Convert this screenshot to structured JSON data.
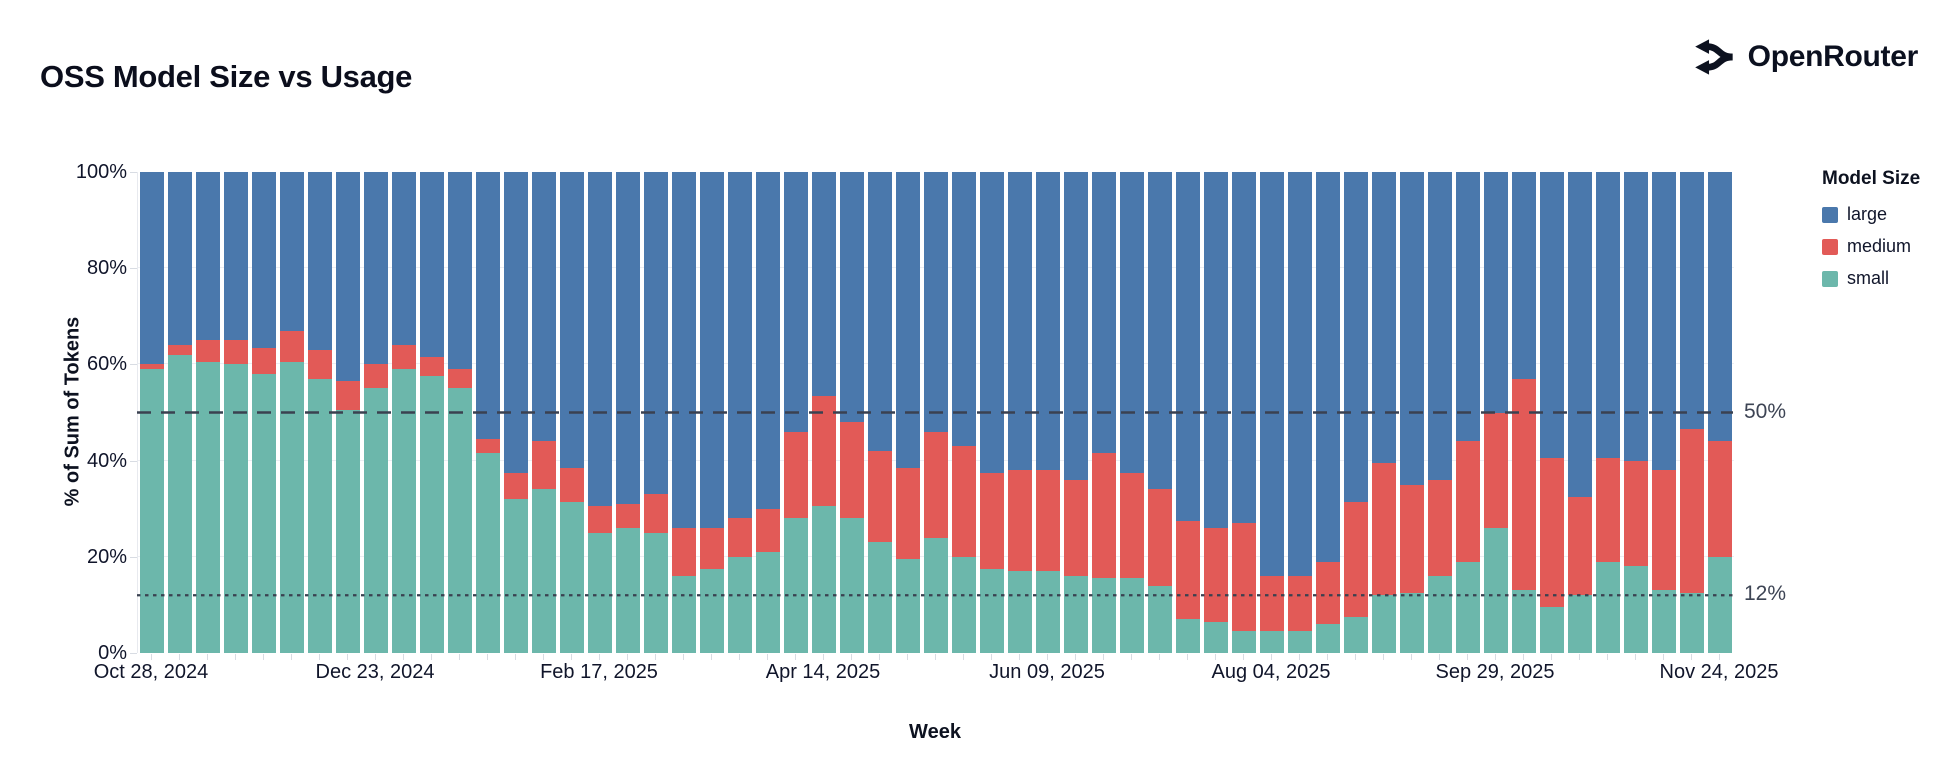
{
  "header": {
    "title": "OSS Model Size vs Usage",
    "brand": "OpenRouter"
  },
  "chart_data": {
    "type": "bar",
    "stacked": true,
    "title": "OSS Model Size vs Usage",
    "xlabel": "Week",
    "ylabel": "% of Sum of Tokens",
    "ylim": [
      0,
      100
    ],
    "grid": "horizontal-light",
    "n_bars": 57,
    "bar_unit": "weekly, Oct 28 2024 to Nov 24 2025",
    "y_ticks": [
      {
        "value": 0,
        "label": "0%"
      },
      {
        "value": 20,
        "label": "20%"
      },
      {
        "value": 40,
        "label": "40%"
      },
      {
        "value": 60,
        "label": "60%"
      },
      {
        "value": 80,
        "label": "80%"
      },
      {
        "value": 100,
        "label": "100%"
      }
    ],
    "y_gridlines": [
      20,
      40,
      60,
      80
    ],
    "x_ticks": [
      {
        "bar_index": 0,
        "label": "Oct 28, 2024"
      },
      {
        "bar_index": 8,
        "label": "Dec 23, 2024"
      },
      {
        "bar_index": 16,
        "label": "Feb 17, 2025"
      },
      {
        "bar_index": 24,
        "label": "Apr 14, 2025"
      },
      {
        "bar_index": 32,
        "label": "Jun 09, 2025"
      },
      {
        "bar_index": 40,
        "label": "Aug 04, 2025"
      },
      {
        "bar_index": 48,
        "label": "Sep 29, 2025"
      },
      {
        "bar_index": 56,
        "label": "Nov 24, 2025"
      }
    ],
    "series_bottom_to_top": [
      "small",
      "medium",
      "large"
    ],
    "series": [
      {
        "name": "small",
        "color": "#6cb7ab",
        "values": [
          59,
          62,
          60.5,
          60,
          58,
          60.5,
          57,
          50.5,
          55,
          59,
          57.5,
          55,
          41.5,
          32,
          34,
          31.5,
          25,
          26,
          25,
          16,
          17.5,
          20,
          21,
          28,
          30.5,
          28,
          23,
          19.5,
          24,
          20,
          17.5,
          17,
          17,
          16,
          15.5,
          15.5,
          14,
          7,
          6.5,
          4.5,
          4.5,
          4.5,
          6,
          7.5,
          12,
          12.5,
          16,
          19,
          26,
          13,
          9.5,
          12,
          19,
          18,
          13,
          12.5,
          20
        ]
      },
      {
        "name": "medium",
        "color": "#e25a57",
        "values": [
          1,
          2,
          4.5,
          5,
          5.5,
          6.5,
          6,
          6,
          5,
          5,
          4,
          4,
          3,
          5.5,
          10,
          7,
          5.5,
          5,
          8,
          10,
          8.5,
          8,
          9,
          18,
          23,
          20,
          19,
          19,
          22,
          23,
          20,
          21,
          21,
          20,
          26,
          22,
          20,
          20.5,
          19.5,
          22.5,
          11.5,
          11.5,
          13,
          24,
          27.5,
          22.5,
          20,
          25,
          24,
          44,
          31,
          20.5,
          21.5,
          22,
          25,
          34,
          24
        ]
      },
      {
        "name": "large",
        "color": "#4a78ac",
        "values": [
          40,
          36,
          35,
          35,
          36.5,
          33,
          37,
          43.5,
          40,
          36,
          38.5,
          41,
          55.5,
          62.5,
          56,
          61.5,
          69.5,
          69,
          67,
          74,
          74,
          72,
          70,
          54,
          46.5,
          52,
          58,
          61.5,
          54,
          57,
          62.5,
          62,
          62,
          64,
          58.5,
          62.5,
          66,
          72.5,
          74,
          73,
          84,
          84,
          81,
          68.5,
          60.5,
          65,
          64,
          56,
          50,
          43,
          59.5,
          67.5,
          59.5,
          60,
          62,
          53.5,
          56
        ]
      }
    ],
    "reference_lines": [
      {
        "value": 50,
        "label": "50%",
        "style": "dashed",
        "color": "#3a4150"
      },
      {
        "value": 12,
        "label": "12%",
        "style": "dotted",
        "color": "#3a4150"
      }
    ],
    "legend": {
      "title": "Model Size",
      "position": "right",
      "entries": [
        {
          "label": "large",
          "color": "#4a78ac"
        },
        {
          "label": "medium",
          "color": "#e25a57"
        },
        {
          "label": "small",
          "color": "#6cb7ab"
        }
      ]
    }
  }
}
